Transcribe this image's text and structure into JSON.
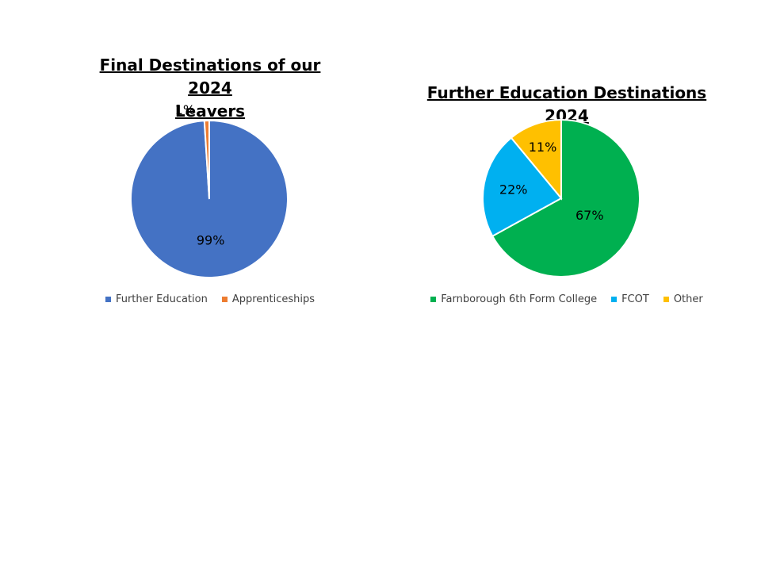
{
  "chart_data": [
    {
      "type": "pie",
      "title": "Final Destinations of our 2024\nLeavers",
      "categories": [
        "Further Education",
        "Apprenticeships"
      ],
      "values": [
        99,
        1
      ],
      "data_labels": [
        "99%",
        "1%"
      ],
      "colors": [
        "#4472C4",
        "#ED7D31"
      ],
      "legend": "bottom"
    },
    {
      "type": "pie",
      "title": "Further Education Destinations 2024",
      "categories": [
        "Farnborough 6th Form College",
        "FCOT",
        "Other"
      ],
      "values": [
        67,
        22,
        11
      ],
      "data_labels": [
        "67%",
        "22%",
        "11%"
      ],
      "colors": [
        "#00B050",
        "#00B0F0",
        "#FFC000"
      ],
      "legend": "bottom"
    }
  ]
}
